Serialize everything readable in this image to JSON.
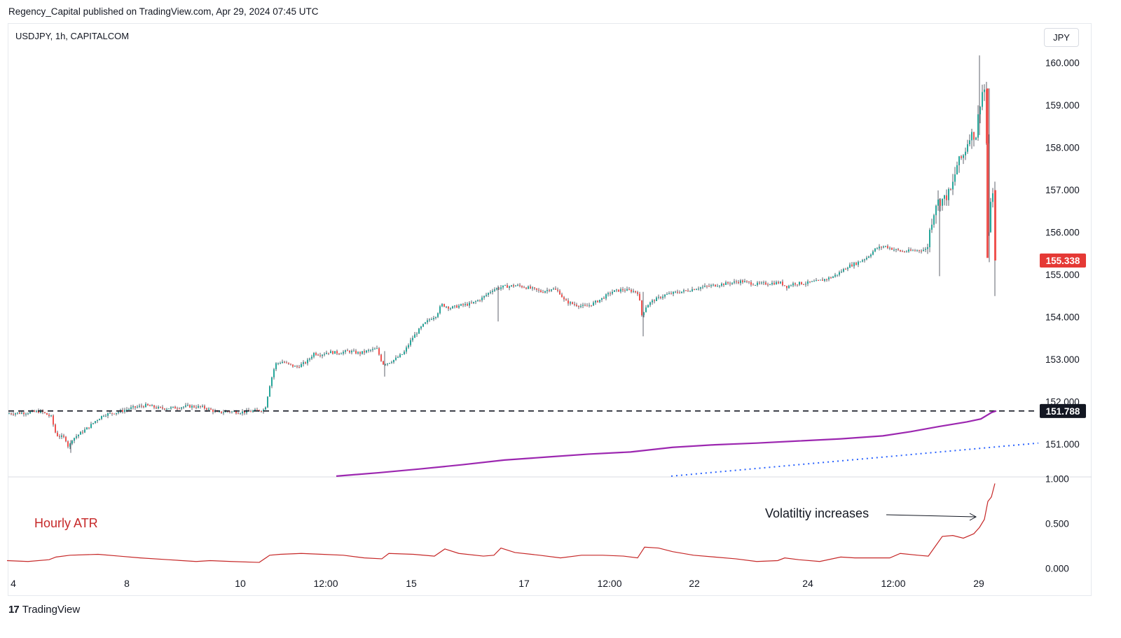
{
  "published_line": "Regency_Capital published on TradingView.com, Apr 29, 2024 07:45 UTC",
  "symbol_label": "USDJPY, 1h, CAPITALCOM",
  "currency_button": "JPY",
  "footer_logo_text": "TradingView",
  "colors": {
    "up": "#26a69a",
    "down": "#ef5350",
    "wick": "#5d606b",
    "ma_line": "#9c27b0",
    "trend_dotted": "#2962ff",
    "atr_line": "#c62828",
    "last_price_bg": "#e53935",
    "support_label_bg": "#131722"
  },
  "chart_data": [
    {
      "type": "candlestick",
      "title": "USDJPY, 1h, CAPITALCOM",
      "y_axis": {
        "ticks": [
          "160.000",
          "159.000",
          "158.000",
          "157.000",
          "156.000",
          "155.000",
          "154.000",
          "153.000",
          "152.000",
          "151.000"
        ],
        "ylim": [
          150.25,
          160.3
        ]
      },
      "x_axis": {
        "tick_labels": [
          "4",
          "8",
          "10",
          "12:00",
          "15",
          "17",
          "12:00",
          "22",
          "24",
          "12:00",
          "29"
        ]
      },
      "price_path": [
        [
          0,
          151.72
        ],
        [
          40,
          151.75
        ],
        [
          60,
          151.78
        ],
        [
          75,
          151.65
        ],
        [
          82,
          151.22
        ],
        [
          95,
          151.15
        ],
        [
          100,
          150.92
        ],
        [
          105,
          151.12
        ],
        [
          118,
          151.28
        ],
        [
          128,
          151.4
        ],
        [
          138,
          151.55
        ],
        [
          150,
          151.7
        ],
        [
          170,
          151.76
        ],
        [
          190,
          151.86
        ],
        [
          210,
          151.92
        ],
        [
          230,
          151.85
        ],
        [
          250,
          151.86
        ],
        [
          270,
          151.9
        ],
        [
          290,
          151.88
        ],
        [
          305,
          151.8
        ],
        [
          312,
          151.74
        ],
        [
          325,
          151.78
        ],
        [
          345,
          151.76
        ],
        [
          360,
          151.78
        ],
        [
          380,
          151.82
        ],
        [
          387,
          152.4
        ],
        [
          395,
          152.9
        ],
        [
          405,
          152.95
        ],
        [
          415,
          152.88
        ],
        [
          425,
          152.82
        ],
        [
          440,
          152.95
        ],
        [
          450,
          153.15
        ],
        [
          460,
          153.12
        ],
        [
          470,
          153.18
        ],
        [
          485,
          153.16
        ],
        [
          500,
          153.2
        ],
        [
          515,
          153.15
        ],
        [
          530,
          153.22
        ],
        [
          540,
          153.25
        ],
        [
          548,
          152.9
        ],
        [
          555,
          152.92
        ],
        [
          565,
          153.0
        ],
        [
          578,
          153.15
        ],
        [
          590,
          153.5
        ],
        [
          605,
          153.8
        ],
        [
          615,
          153.95
        ],
        [
          625,
          154.05
        ],
        [
          632,
          154.3
        ],
        [
          645,
          154.22
        ],
        [
          660,
          154.28
        ],
        [
          675,
          154.32
        ],
        [
          690,
          154.45
        ],
        [
          705,
          154.65
        ],
        [
          720,
          154.72
        ],
        [
          740,
          154.75
        ],
        [
          760,
          154.68
        ],
        [
          775,
          154.6
        ],
        [
          790,
          154.68
        ],
        [
          800,
          154.6
        ],
        [
          808,
          154.38
        ],
        [
          822,
          154.3
        ],
        [
          837,
          154.25
        ],
        [
          848,
          154.32
        ],
        [
          862,
          154.45
        ],
        [
          875,
          154.6
        ],
        [
          890,
          154.65
        ],
        [
          905,
          154.62
        ],
        [
          913,
          154.58
        ],
        [
          918,
          154.05
        ],
        [
          925,
          154.28
        ],
        [
          935,
          154.4
        ],
        [
          950,
          154.52
        ],
        [
          965,
          154.58
        ],
        [
          980,
          154.62
        ],
        [
          1000,
          154.7
        ],
        [
          1020,
          154.75
        ],
        [
          1040,
          154.8
        ],
        [
          1060,
          154.85
        ],
        [
          1080,
          154.78
        ],
        [
          1100,
          154.8
        ],
        [
          1115,
          154.82
        ],
        [
          1125,
          154.72
        ],
        [
          1135,
          154.8
        ],
        [
          1150,
          154.8
        ],
        [
          1170,
          154.85
        ],
        [
          1190,
          154.95
        ],
        [
          1200,
          155.05
        ],
        [
          1212,
          155.2
        ],
        [
          1225,
          155.28
        ],
        [
          1240,
          155.42
        ],
        [
          1252,
          155.62
        ],
        [
          1265,
          155.68
        ],
        [
          1278,
          155.6
        ],
        [
          1290,
          155.55
        ],
        [
          1310,
          155.58
        ],
        [
          1325,
          155.6
        ],
        [
          1330,
          156.15
        ],
        [
          1338,
          156.7
        ],
        [
          1350,
          156.8
        ],
        [
          1360,
          157.0
        ],
        [
          1368,
          157.6
        ],
        [
          1378,
          157.85
        ],
        [
          1386,
          158.3
        ],
        [
          1395,
          158.3
        ],
        [
          1400,
          159.0
        ],
        [
          1405,
          159.4
        ],
        [
          1409,
          159.35
        ],
        [
          1412,
          155.6
        ],
        [
          1416,
          156.8
        ],
        [
          1420,
          156.9
        ],
        [
          1422,
          155.34
        ]
      ],
      "moving_average": [
        [
          480,
          150.25
        ],
        [
          540,
          150.33
        ],
        [
          600,
          150.42
        ],
        [
          660,
          150.52
        ],
        [
          720,
          150.63
        ],
        [
          780,
          150.7
        ],
        [
          840,
          150.77
        ],
        [
          900,
          150.82
        ],
        [
          960,
          150.93
        ],
        [
          1020,
          150.99
        ],
        [
          1080,
          151.03
        ],
        [
          1140,
          151.08
        ],
        [
          1200,
          151.13
        ],
        [
          1260,
          151.2
        ],
        [
          1300,
          151.3
        ],
        [
          1340,
          151.42
        ],
        [
          1380,
          151.53
        ],
        [
          1400,
          151.6
        ],
        [
          1415,
          151.75
        ],
        [
          1422,
          151.79
        ]
      ],
      "dotted_trendline": [
        [
          958,
          150.25
        ],
        [
          1482,
          151.03
        ]
      ],
      "horizontal_support": 151.788,
      "price_labels": {
        "last_price": "155.338",
        "support": "151.788"
      }
    },
    {
      "type": "line",
      "label": "Hourly ATR",
      "y_axis": {
        "ticks": [
          "1.000",
          "0.500",
          "0.000"
        ],
        "ylim": [
          -0.05,
          1.0
        ]
      },
      "values": [
        [
          10,
          0.09
        ],
        [
          40,
          0.08
        ],
        [
          70,
          0.1
        ],
        [
          80,
          0.13
        ],
        [
          100,
          0.15
        ],
        [
          140,
          0.16
        ],
        [
          170,
          0.14
        ],
        [
          200,
          0.12
        ],
        [
          240,
          0.1
        ],
        [
          280,
          0.08
        ],
        [
          300,
          0.09
        ],
        [
          330,
          0.08
        ],
        [
          370,
          0.07
        ],
        [
          385,
          0.15
        ],
        [
          400,
          0.16
        ],
        [
          430,
          0.17
        ],
        [
          460,
          0.16
        ],
        [
          490,
          0.15
        ],
        [
          520,
          0.12
        ],
        [
          545,
          0.11
        ],
        [
          555,
          0.17
        ],
        [
          590,
          0.16
        ],
        [
          620,
          0.14
        ],
        [
          635,
          0.22
        ],
        [
          655,
          0.17
        ],
        [
          690,
          0.14
        ],
        [
          705,
          0.15
        ],
        [
          715,
          0.23
        ],
        [
          735,
          0.18
        ],
        [
          770,
          0.15
        ],
        [
          800,
          0.12
        ],
        [
          830,
          0.15
        ],
        [
          860,
          0.15
        ],
        [
          890,
          0.14
        ],
        [
          910,
          0.12
        ],
        [
          920,
          0.24
        ],
        [
          940,
          0.23
        ],
        [
          960,
          0.19
        ],
        [
          990,
          0.15
        ],
        [
          1020,
          0.13
        ],
        [
          1050,
          0.11
        ],
        [
          1080,
          0.08
        ],
        [
          1110,
          0.09
        ],
        [
          1120,
          0.12
        ],
        [
          1140,
          0.1
        ],
        [
          1170,
          0.08
        ],
        [
          1200,
          0.13
        ],
        [
          1220,
          0.12
        ],
        [
          1250,
          0.12
        ],
        [
          1270,
          0.12
        ],
        [
          1285,
          0.17
        ],
        [
          1310,
          0.15
        ],
        [
          1325,
          0.14
        ],
        [
          1335,
          0.25
        ],
        [
          1345,
          0.36
        ],
        [
          1360,
          0.37
        ],
        [
          1375,
          0.34
        ],
        [
          1390,
          0.39
        ],
        [
          1398,
          0.46
        ],
        [
          1405,
          0.55
        ],
        [
          1410,
          0.75
        ],
        [
          1415,
          0.8
        ],
        [
          1420,
          0.95
        ]
      ],
      "annotation": "Volatiltiy increases"
    }
  ]
}
